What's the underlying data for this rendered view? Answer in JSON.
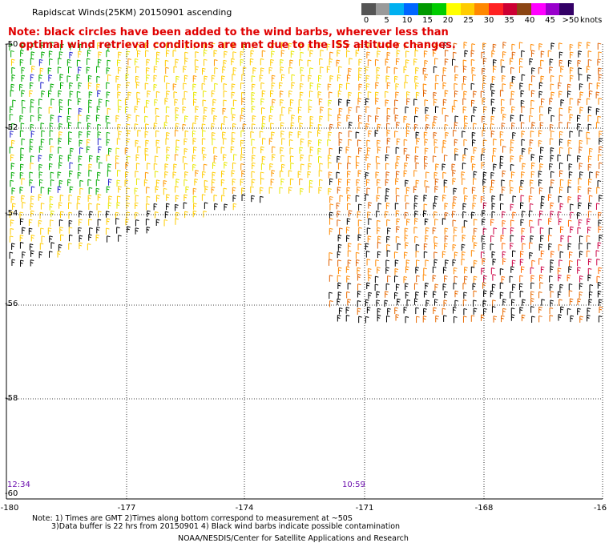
{
  "title": "Rapidscat Winds(25KM) 20150901 ascending",
  "note_lines": [
    "Note: black circles have been added to the wind barbs, wherever less than",
    "   optimal wind retrieval conditions are met due to the ISS altitude changes."
  ],
  "legend": {
    "unit": "knots",
    "labels": [
      "0",
      "5",
      "10",
      "15",
      "20",
      "25",
      "30",
      "35",
      "40",
      "45",
      ">50"
    ],
    "colors": [
      "#555555",
      "#9a9a9a",
      "#00b0f0",
      "#0066ff",
      "#009900",
      "#00cc00",
      "#ffff00",
      "#ffcc00",
      "#ff8800",
      "#ff2222",
      "#cc0033",
      "#8b4513",
      "#ff00ff",
      "#9900cc",
      "#330066"
    ]
  },
  "map": {
    "lat_labels": [
      "-50",
      "-52",
      "-54",
      "-56",
      "-58",
      "-60"
    ],
    "lon_labels": [
      "-180",
      "-177",
      "-174",
      "-171",
      "-168",
      "-16"
    ],
    "times": [
      "12:34",
      "10:59"
    ]
  },
  "footer": {
    "line1": "Note: 1) Times are GMT 2)Times along bottom correspond to measurement at ~50S",
    "line2": "3)Data buffer is 22 hrs from 20150901 4) Black wind barbs indicate possible contamination",
    "line3": "NOAA/NESDIS/Center for Satellite Applications and Research"
  }
}
